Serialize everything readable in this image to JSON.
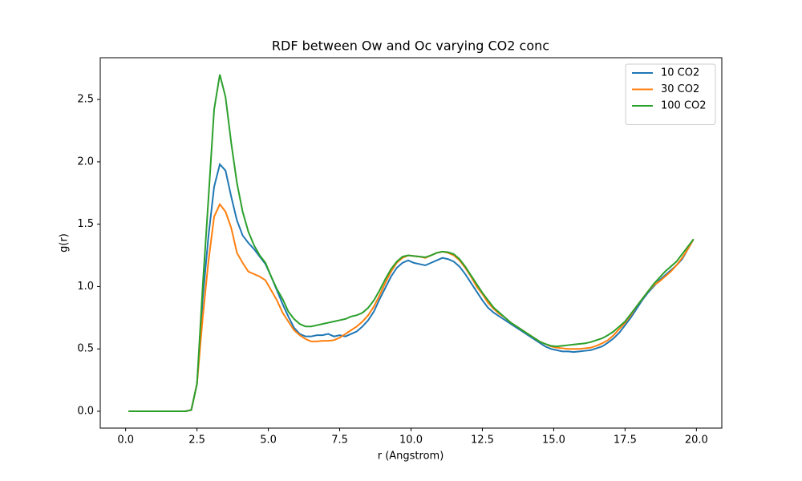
{
  "chart_data": {
    "type": "line",
    "title": "RDF between Ow and Oc varying CO2 conc",
    "x_label": "r (Angstrom)",
    "y_label": "g(r)",
    "x": [
      0.1,
      0.3,
      0.5,
      0.7,
      0.9,
      1.1,
      1.3,
      1.5,
      1.7,
      1.9,
      2.1,
      2.3,
      2.5,
      2.7,
      2.9,
      3.1,
      3.3,
      3.5,
      3.7,
      3.9,
      4.1,
      4.3,
      4.5,
      4.7,
      4.9,
      5.1,
      5.3,
      5.5,
      5.7,
      5.9,
      6.1,
      6.3,
      6.5,
      6.7,
      6.9,
      7.1,
      7.3,
      7.5,
      7.7,
      7.9,
      8.1,
      8.3,
      8.5,
      8.7,
      8.9,
      9.1,
      9.3,
      9.5,
      9.7,
      9.9,
      10.1,
      10.3,
      10.5,
      10.7,
      10.9,
      11.1,
      11.3,
      11.5,
      11.7,
      11.9,
      12.1,
      12.3,
      12.5,
      12.7,
      12.9,
      13.1,
      13.3,
      13.5,
      13.7,
      13.9,
      14.1,
      14.3,
      14.5,
      14.7,
      14.9,
      15.1,
      15.3,
      15.5,
      15.7,
      15.9,
      16.1,
      16.3,
      16.5,
      16.7,
      16.9,
      17.1,
      17.3,
      17.5,
      17.7,
      17.9,
      18.1,
      18.3,
      18.5,
      18.7,
      18.9,
      19.1,
      19.3,
      19.5,
      19.7,
      19.9
    ],
    "series": [
      {
        "name": "10 CO2",
        "color": "#1f77b4",
        "values": [
          0,
          0,
          0,
          0,
          0,
          0,
          0,
          0,
          0,
          0,
          0,
          0.01,
          0.22,
          0.9,
          1.4,
          1.8,
          1.98,
          1.93,
          1.72,
          1.53,
          1.41,
          1.35,
          1.3,
          1.24,
          1.18,
          1.08,
          0.97,
          0.86,
          0.76,
          0.67,
          0.62,
          0.6,
          0.6,
          0.61,
          0.61,
          0.62,
          0.6,
          0.61,
          0.6,
          0.62,
          0.64,
          0.68,
          0.73,
          0.8,
          0.9,
          0.99,
          1.08,
          1.15,
          1.19,
          1.21,
          1.19,
          1.18,
          1.17,
          1.19,
          1.21,
          1.23,
          1.22,
          1.2,
          1.16,
          1.1,
          1.03,
          0.96,
          0.89,
          0.83,
          0.79,
          0.76,
          0.73,
          0.7,
          0.67,
          0.64,
          0.61,
          0.58,
          0.55,
          0.52,
          0.5,
          0.49,
          0.48,
          0.48,
          0.475,
          0.48,
          0.485,
          0.49,
          0.505,
          0.52,
          0.55,
          0.585,
          0.63,
          0.69,
          0.75,
          0.82,
          0.89,
          0.95,
          1.0,
          1.05,
          1.09,
          1.13,
          1.17,
          1.22,
          1.3,
          1.38
        ]
      },
      {
        "name": "30 CO2",
        "color": "#ff7f0e",
        "values": [
          0,
          0,
          0,
          0,
          0,
          0,
          0,
          0,
          0,
          0,
          0,
          0.01,
          0.22,
          0.75,
          1.2,
          1.56,
          1.66,
          1.6,
          1.47,
          1.27,
          1.19,
          1.12,
          1.1,
          1.08,
          1.05,
          0.97,
          0.89,
          0.79,
          0.72,
          0.65,
          0.61,
          0.58,
          0.56,
          0.56,
          0.565,
          0.565,
          0.57,
          0.59,
          0.62,
          0.65,
          0.68,
          0.72,
          0.77,
          0.84,
          0.93,
          1.03,
          1.12,
          1.19,
          1.23,
          1.25,
          1.245,
          1.24,
          1.23,
          1.25,
          1.27,
          1.28,
          1.27,
          1.25,
          1.21,
          1.15,
          1.08,
          1.0,
          0.94,
          0.87,
          0.82,
          0.78,
          0.75,
          0.71,
          0.68,
          0.65,
          0.62,
          0.59,
          0.56,
          0.54,
          0.52,
          0.51,
          0.505,
          0.5,
          0.5,
          0.5,
          0.505,
          0.51,
          0.525,
          0.545,
          0.57,
          0.61,
          0.66,
          0.71,
          0.77,
          0.84,
          0.9,
          0.96,
          1.01,
          1.04,
          1.08,
          1.12,
          1.17,
          1.23,
          1.3,
          1.38
        ]
      },
      {
        "name": "100 CO2",
        "color": "#2ca02c",
        "values": [
          0,
          0,
          0,
          0,
          0,
          0,
          0,
          0,
          0,
          0,
          0,
          0.01,
          0.22,
          1.0,
          1.7,
          2.42,
          2.7,
          2.52,
          2.15,
          1.83,
          1.6,
          1.44,
          1.33,
          1.25,
          1.19,
          1.08,
          0.98,
          0.9,
          0.8,
          0.74,
          0.7,
          0.68,
          0.68,
          0.69,
          0.7,
          0.71,
          0.72,
          0.73,
          0.74,
          0.76,
          0.77,
          0.79,
          0.83,
          0.89,
          0.97,
          1.06,
          1.14,
          1.2,
          1.24,
          1.25,
          1.245,
          1.24,
          1.235,
          1.25,
          1.27,
          1.28,
          1.275,
          1.26,
          1.22,
          1.16,
          1.09,
          1.02,
          0.95,
          0.89,
          0.83,
          0.79,
          0.75,
          0.71,
          0.68,
          0.65,
          0.62,
          0.59,
          0.56,
          0.54,
          0.525,
          0.52,
          0.525,
          0.53,
          0.535,
          0.54,
          0.545,
          0.555,
          0.57,
          0.585,
          0.61,
          0.64,
          0.68,
          0.72,
          0.78,
          0.84,
          0.9,
          0.96,
          1.02,
          1.07,
          1.12,
          1.16,
          1.2,
          1.26,
          1.32,
          1.38
        ]
      }
    ],
    "xlim": [
      -0.89,
      20.89
    ],
    "xticks": [
      {
        "value": 0,
        "label": "0.0"
      },
      2.5,
      {
        "value": 5,
        "label": "5.0"
      },
      7.5,
      {
        "value": 10,
        "label": "10.0"
      },
      12.5,
      {
        "value": 15,
        "label": "15.0"
      },
      17.5,
      {
        "value": 20,
        "label": "20.0"
      }
    ],
    "ylim": [
      -0.135,
      2.835
    ],
    "yticks": [
      {
        "value": 0,
        "label": "0.0"
      },
      0.5,
      {
        "value": 1,
        "label": "1.0"
      },
      1.5,
      {
        "value": 2,
        "label": "2.0"
      },
      2.5
    ],
    "grid": false,
    "legend": "upper-right"
  }
}
